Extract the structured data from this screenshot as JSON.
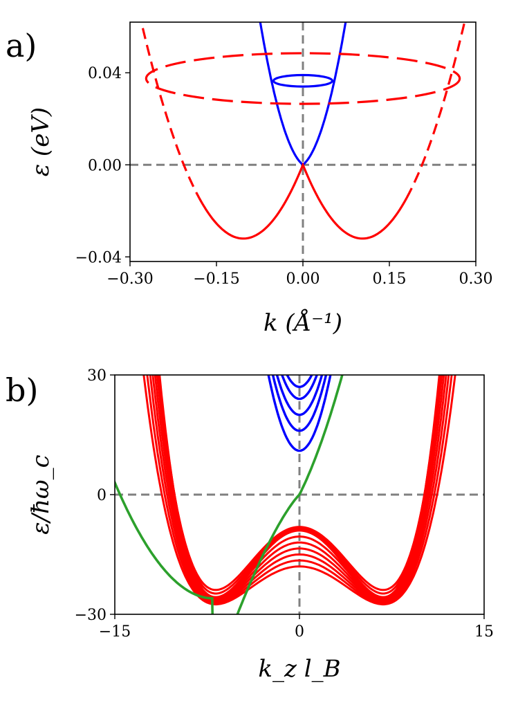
{
  "chart_data": [
    {
      "panel_label": "a)",
      "type": "line",
      "xlabel": "k (Å⁻¹)",
      "ylabel": "ε (eV)",
      "xlim": [
        -0.3,
        0.3
      ],
      "ylim": [
        -0.042,
        0.062
      ],
      "xticks": [
        -0.3,
        -0.15,
        0.0,
        0.15,
        0.3
      ],
      "xtick_labels": [
        "−0.30",
        "−0.15",
        "0.00",
        "0.15",
        "0.30"
      ],
      "yticks": [
        -0.04,
        0.0,
        0.04
      ],
      "ytick_labels": [
        "−0.04",
        "0.00",
        "0.04"
      ],
      "reference_lines": {
        "x": 0,
        "y": 0,
        "color": "#808080",
        "style": "dashed"
      },
      "series": [
        {
          "color": "#0000ff",
          "style": "solid",
          "x": [
            -0.075,
            -0.05,
            -0.025,
            0,
            0.025,
            0.05,
            0.075
          ],
          "y": [
            0.0635,
            0.038,
            0.016,
            0.0,
            0.016,
            0.038,
            0.0635
          ]
        },
        {
          "color": "#ff0000",
          "style": "solid",
          "x": [
            -0.175,
            -0.11,
            -0.055,
            0,
            0.055,
            0.11,
            0.175
          ],
          "y": [
            -0.02,
            -0.034,
            -0.025,
            0.0,
            -0.025,
            -0.034,
            -0.02
          ]
        },
        {
          "color": "#ff0000",
          "style": "dashed",
          "x": [
            -0.3,
            -0.28,
            -0.26,
            -0.24,
            -0.22,
            -0.2,
            -0.18
          ],
          "y": [
            0.062,
            0.038,
            0.018,
            0.0,
            -0.014,
            -0.025,
            -0.031
          ]
        },
        {
          "color": "#ff0000",
          "style": "dashed",
          "x": [
            0.18,
            0.2,
            0.22,
            0.24,
            0.26,
            0.28,
            0.3
          ],
          "y": [
            -0.031,
            -0.025,
            -0.014,
            0.0,
            0.018,
            0.038,
            0.062
          ]
        }
      ],
      "ellipses": [
        {
          "color": "#0000ff",
          "style": "solid",
          "center": [
            0,
            0.0365
          ],
          "rx": 0.051,
          "ry": 0.0025
        },
        {
          "color": "#ff0000",
          "style": "dashed",
          "center": [
            0,
            0.0375
          ],
          "rx": 0.272,
          "ry": 0.011
        }
      ]
    },
    {
      "panel_label": "b)",
      "type": "line",
      "xlabel": "k_z l_B",
      "ylabel": "ε/ħω_c",
      "xlim": [
        -15,
        15
      ],
      "ylim": [
        -30,
        30
      ],
      "xticks": [
        -15,
        0,
        15
      ],
      "xtick_labels": [
        "−15",
        "0",
        "15"
      ],
      "yticks": [
        -30,
        0,
        30
      ],
      "ytick_labels": [
        "−30",
        "0",
        "30"
      ],
      "reference_lines": {
        "x": 0,
        "y": 0,
        "color": "#808080",
        "style": "dashed"
      },
      "blue_minima": [
        11,
        16,
        20,
        24,
        27
      ],
      "red_maxima": [
        -9,
        -10.5,
        -12,
        -13.5,
        -15,
        -16.5,
        -18
      ],
      "series": [
        {
          "name": "",
          "color": "#2ca02c",
          "x": [
            -15,
            -12,
            -10,
            -7,
            -4,
            -2,
            0,
            2,
            3.5
          ],
          "y": [
            3,
            -14,
            -21,
            -26,
            -22,
            -12,
            0,
            15,
            30
          ]
        }
      ],
      "bands": [
        {
          "color": "#ff0000",
          "x": [
            -15,
            -12,
            -9,
            -7,
            -4,
            -2,
            0,
            2,
            4,
            7,
            9,
            12,
            15
          ],
          "y": [
            6,
            -15,
            -24,
            -26,
            -24,
            -16,
            -9,
            -16,
            -24,
            -26,
            -24,
            -15,
            6
          ]
        },
        {
          "color": "#0000ff",
          "x": [
            -3.5,
            -2,
            0,
            2,
            3.5
          ],
          "y": [
            30,
            16,
            11,
            16,
            30
          ]
        }
      ]
    }
  ]
}
